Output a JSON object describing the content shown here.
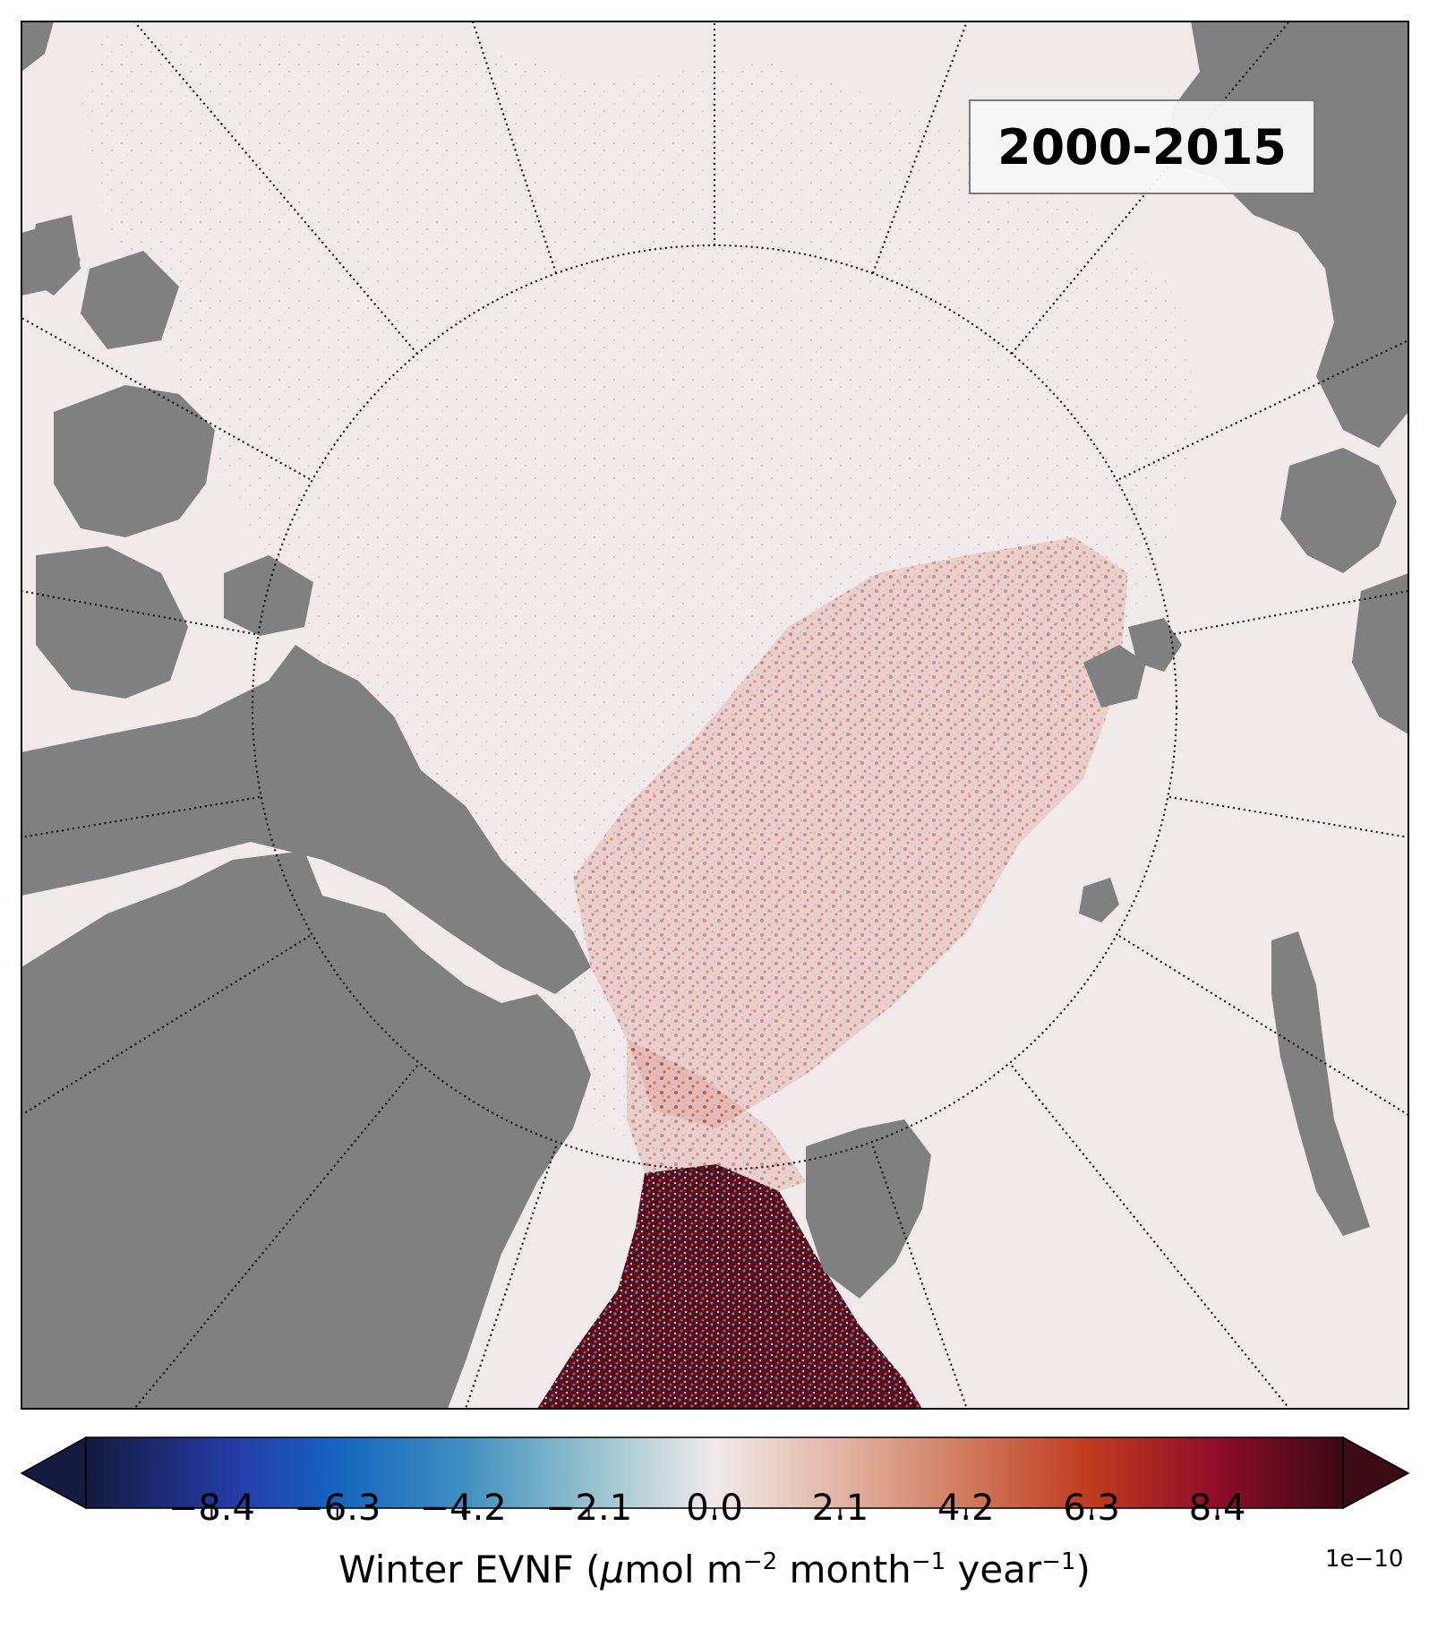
{
  "map": {
    "period_label": "2000-2015",
    "ocean_color": "#f0eaea",
    "land_color": "#808080",
    "graticule_color": "#000000",
    "icons": [
      "land-mass-shape",
      "graticule-line",
      "anomaly-pattern"
    ]
  },
  "colorbar": {
    "ticks": [
      "−8.4",
      "−6.3",
      "−4.2",
      "−2.1",
      "0.0",
      "2.1",
      "4.2",
      "6.3",
      "8.4"
    ],
    "tick_values": [
      -8.4,
      -6.3,
      -4.2,
      -2.1,
      0.0,
      2.1,
      4.2,
      6.3,
      8.4
    ],
    "range": [
      -10.5,
      10.5
    ],
    "extend": "both",
    "label_prefix": "Winter EVNF (",
    "label_mu": "μ",
    "label_mol_m": "mol m",
    "label_exp1": "−2",
    "label_month": " month",
    "label_exp2": "−1",
    "label_year": " year",
    "label_exp3": "−1",
    "label_suffix": ")",
    "offset": "1e−10",
    "colors": [
      "#141b3e",
      "#253ca8",
      "#1565c0",
      "#3f8fc0",
      "#93c1cc",
      "#f0eaea",
      "#e2b5a4",
      "#d07a5c",
      "#bf3a1f",
      "#8e0d29",
      "#3b0a14"
    ]
  }
}
